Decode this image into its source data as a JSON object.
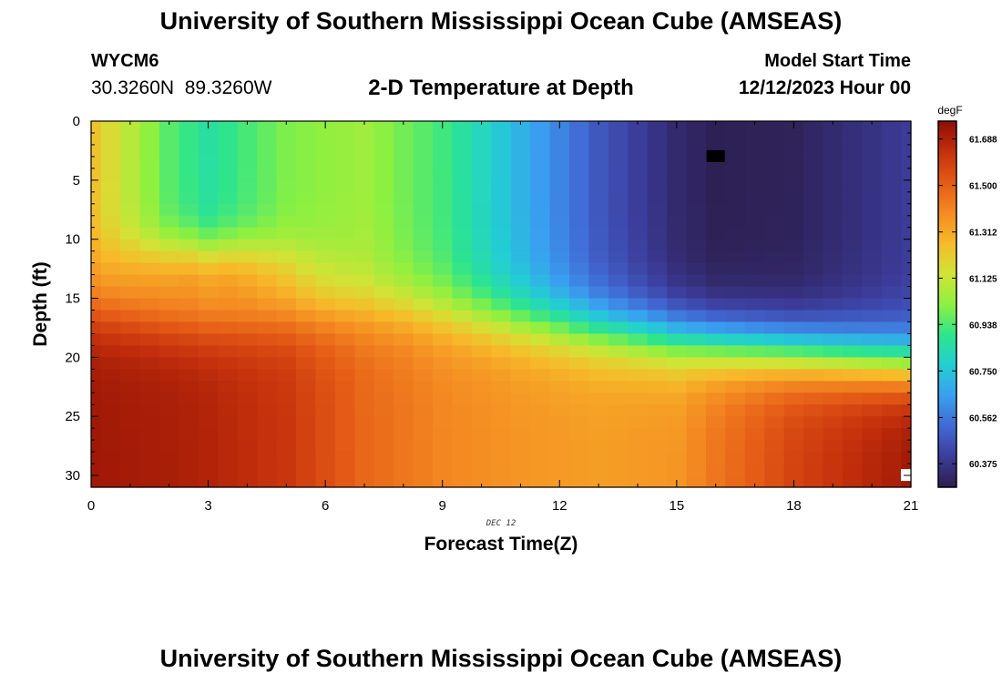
{
  "header": {
    "title": "University of Southern Mississippi Ocean Cube (AMSEAS)",
    "footer_title": "University of Southern Mississippi Ocean Cube (AMSEAS)",
    "station_id": "WYCM6",
    "station_coords": "30.3260N  89.3260W",
    "plot_title": "2-D Temperature at Depth",
    "model_start_label": "Model Start Time",
    "model_start_value": "12/12/2023 Hour 00"
  },
  "chart_data": {
    "type": "heatmap",
    "title": "2-D Temperature at Depth",
    "xlabel": "Forecast Time(Z)",
    "ylabel": "Depth (ft)",
    "date_annotation": "DEC 12",
    "x_ticks": [
      "0",
      "3",
      "6",
      "9",
      "12",
      "15",
      "18",
      "21"
    ],
    "y_ticks": [
      "0",
      "5",
      "10",
      "15",
      "20",
      "25",
      "30"
    ],
    "xlim": [
      0,
      21
    ],
    "ylim": [
      0,
      31
    ],
    "colorbar": {
      "unit": "degF",
      "ticks": [
        "61.688",
        "61.500",
        "61.312",
        "61.125",
        "60.938",
        "60.750",
        "60.562",
        "60.375"
      ],
      "range": [
        60.28,
        61.76
      ],
      "colors": [
        "#2c1e4e",
        "#3c3c9a",
        "#4169d4",
        "#3a9ff0",
        "#22cfd2",
        "#2ee58c",
        "#8ef040",
        "#d2e336",
        "#f7ba2a",
        "#f48a22",
        "#e45a16",
        "#c4300c",
        "#8e0e04"
      ]
    },
    "x_hours": [
      0,
      0.5,
      1,
      1.5,
      2,
      2.5,
      3,
      3.5,
      4,
      4.5,
      5,
      5.5,
      6,
      6.5,
      7,
      7.5,
      8,
      8.5,
      9,
      9.5,
      10,
      10.5,
      11,
      11.5,
      12,
      12.5,
      13,
      13.5,
      14,
      14.5,
      15,
      15.5,
      16,
      16.5,
      17,
      17.5,
      18,
      18.5,
      19,
      19.5,
      20,
      20.5,
      21
    ],
    "depth_bins_ft": [
      0,
      1,
      2,
      3,
      4,
      5,
      6,
      7,
      8,
      9,
      10,
      11,
      12,
      13,
      14,
      15,
      16,
      17,
      18,
      19,
      20,
      21,
      22,
      23,
      24,
      25,
      26,
      27,
      28,
      29,
      30,
      31
    ],
    "time_profile": [
      {
        "t": 0,
        "surface": 61.24,
        "bottom": 61.72
      },
      {
        "t": 2,
        "surface": 60.95,
        "bottom": 61.7
      },
      {
        "t": 3,
        "surface": 60.86,
        "bottom": 61.68
      },
      {
        "t": 5,
        "surface": 61.0,
        "bottom": 61.62
      },
      {
        "t": 7,
        "surface": 61.05,
        "bottom": 61.48
      },
      {
        "t": 9,
        "surface": 60.92,
        "bottom": 61.4
      },
      {
        "t": 11,
        "surface": 60.7,
        "bottom": 61.36
      },
      {
        "t": 13,
        "surface": 60.48,
        "bottom": 61.34
      },
      {
        "t": 15,
        "surface": 60.33,
        "bottom": 61.36
      },
      {
        "t": 16,
        "surface": 60.29,
        "bottom": 61.44
      },
      {
        "t": 18,
        "surface": 60.3,
        "bottom": 61.58
      },
      {
        "t": 21,
        "surface": 60.4,
        "bottom": 61.72
      }
    ],
    "markers": [
      {
        "label": "black-marker",
        "t": 16,
        "depth": 2,
        "color": "#000000"
      },
      {
        "label": "white-marker",
        "t": 21,
        "depth": 29,
        "color": "#ffffff"
      }
    ]
  }
}
